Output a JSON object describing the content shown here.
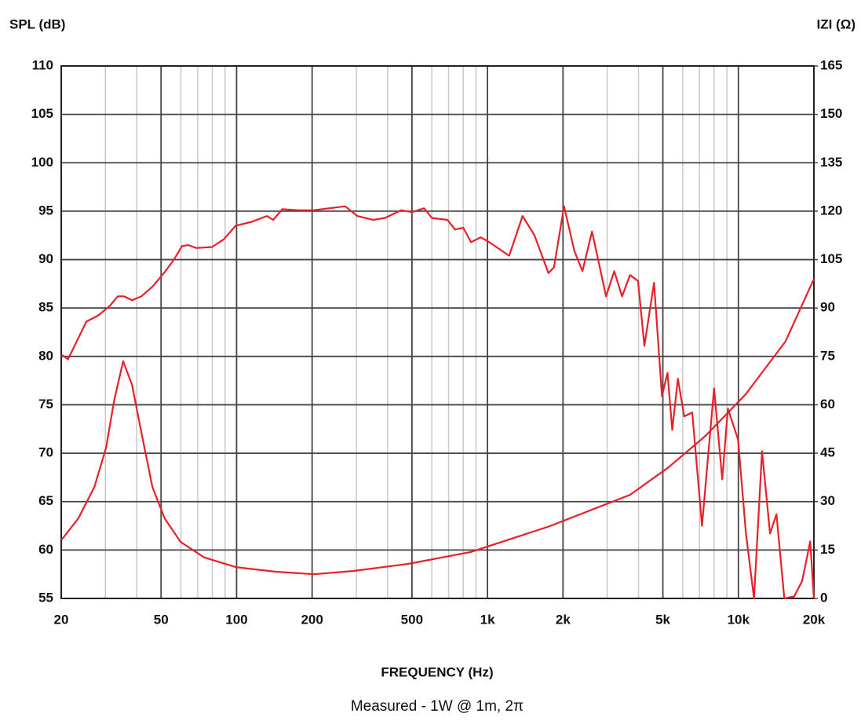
{
  "chart_data": {
    "type": "line",
    "y_label": "SPL (dB)",
    "y2_label": "IZI (Ω)",
    "x_label": "FREQUENCY (Hz)",
    "caption": "Measured - 1W @ 1m, 2π",
    "log_x": true,
    "grid": true,
    "xlim": [
      20,
      20000
    ],
    "xticks": [
      20,
      50,
      100,
      200,
      500,
      {
        "value": 1000,
        "label": "1k"
      },
      {
        "value": 2000,
        "label": "2k"
      },
      {
        "value": 5000,
        "label": "5k"
      },
      {
        "value": 10000,
        "label": "10k"
      },
      {
        "value": 20000,
        "label": "20k"
      }
    ],
    "xminorticks": [
      30,
      40,
      60,
      70,
      80,
      90,
      300,
      400,
      600,
      700,
      800,
      900,
      3000,
      4000,
      6000,
      7000,
      8000,
      9000
    ],
    "ylim": [
      55,
      110
    ],
    "yticks": [
      55,
      60,
      65,
      70,
      75,
      80,
      85,
      90,
      95,
      100,
      105,
      110
    ],
    "y2lim": [
      0,
      165
    ],
    "y2ticks": [
      0,
      15,
      30,
      45,
      60,
      75,
      90,
      105,
      120,
      135,
      150,
      165
    ],
    "series": [
      {
        "color": "#e8202a",
        "x": [
          20,
          21.3,
          22.6,
          25.2,
          28,
          31.2,
          33.6,
          35.6,
          38.3,
          41.7,
          46.2,
          51.7,
          56.3,
          60.6,
          64.3,
          69.1,
          79.9,
          88.9,
          99.2,
          114.6,
          132,
          140,
          152,
          176,
          203,
          234,
          271,
          303,
          350,
          391,
          452,
          500,
          559,
          600,
          692,
          743,
          800,
          860,
          940,
          1030,
          1220,
          1380,
          1540,
          1750,
          1840,
          2020,
          2220,
          2390,
          2610,
          2970,
          3200,
          3440,
          3700,
          3980,
          4220,
          4610,
          4960,
          5220,
          5450,
          5740,
          6080,
          6550,
          7160,
          8000,
          8620,
          9080,
          9970,
          10720,
          11540,
          12420,
          13370,
          14180,
          15240,
          16680,
          17950,
          19330,
          20000
        ],
        "values": [
          80.2,
          79.7,
          81.1,
          83.6,
          84.2,
          85.2,
          86.2,
          86.2,
          85.8,
          86.2,
          87.2,
          88.7,
          90.0,
          91.4,
          91.5,
          91.2,
          91.3,
          92.1,
          93.5,
          93.9,
          94.5,
          94.1,
          95.2,
          95.1,
          95.1,
          95.3,
          95.5,
          94.5,
          94.1,
          94.3,
          95.1,
          94.9,
          95.3,
          94.3,
          94.1,
          93.1,
          93.3,
          91.8,
          92.3,
          91.7,
          90.4,
          94.5,
          92.5,
          88.6,
          89.2,
          95.5,
          90.9,
          88.8,
          92.9,
          86.2,
          88.8,
          86.2,
          88.4,
          87.8,
          81.1,
          87.6,
          75.9,
          78.3,
          72.4,
          77.7,
          73.8,
          74.2,
          62.5,
          76.7,
          67.3,
          74.6,
          71.4,
          61.7,
          55.0,
          70.2,
          61.7,
          63.7,
          55,
          55.2,
          56.8,
          60.9,
          55
        ]
      },
      {
        "color": "#e8202a",
        "axis": "y2",
        "x": [
          20,
          23.4,
          27.1,
          30.2,
          32.5,
          35.3,
          38.3,
          41.7,
          46.2,
          51.7,
          59.8,
          74.3,
          99.2,
          142,
          203,
          290,
          483,
          860,
          1770,
          3700,
          5260,
          7400,
          10700,
          15400,
          20000
        ],
        "values": [
          18.0,
          24.8,
          34.5,
          46.7,
          61.3,
          73.5,
          66.2,
          51.6,
          34.5,
          24.8,
          17.5,
          12.7,
          9.7,
          8.3,
          7.5,
          8.5,
          10.7,
          14.4,
          22.4,
          32.1,
          40.6,
          50.4,
          63.3,
          79.6,
          99.0
        ]
      }
    ]
  }
}
